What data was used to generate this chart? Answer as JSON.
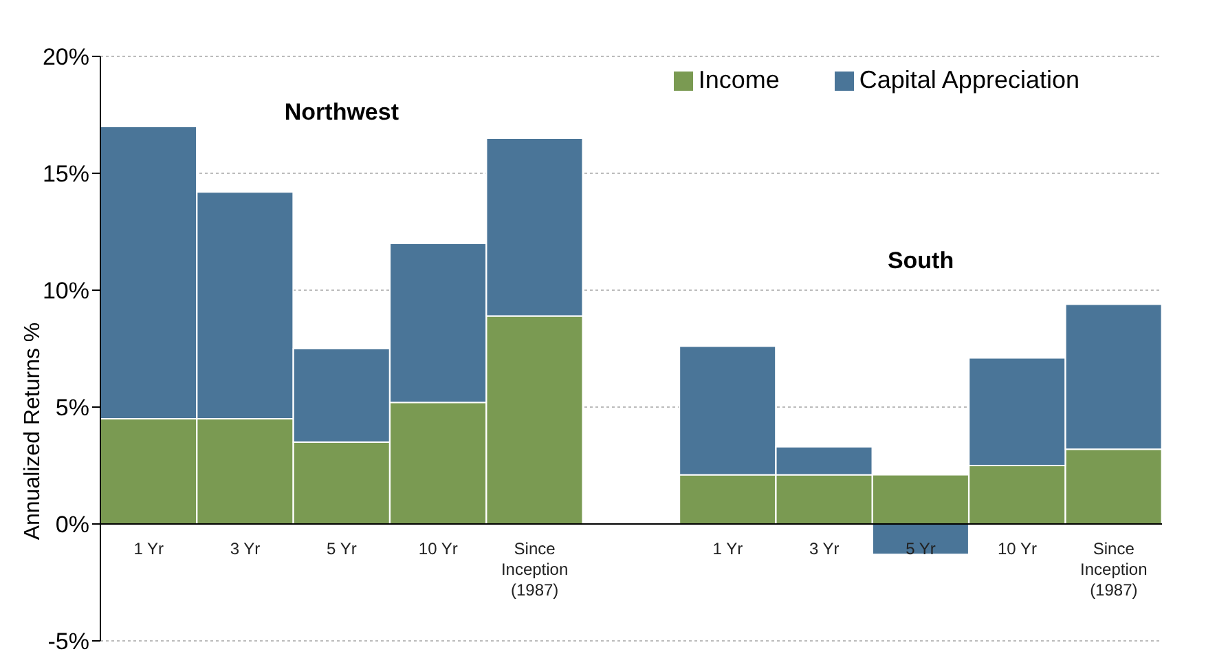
{
  "chart_data": {
    "type": "bar",
    "stacked": true,
    "ylabel": "Annualized Returns %",
    "categories": [
      "1 Yr",
      "3 Yr",
      "5 Yr",
      "10 Yr",
      "Since Inception (1987)",
      null,
      "1 Yr",
      "3 Yr",
      "5 Yr",
      "10 Yr",
      "Since Inception (1987)"
    ],
    "series": [
      {
        "name": "Income",
        "color": "#7a9a52",
        "values": [
          4.5,
          4.5,
          3.5,
          5.2,
          8.9,
          null,
          2.1,
          2.1,
          2.1,
          2.5,
          3.2
        ]
      },
      {
        "name": "Capital Appreciation",
        "color": "#4a7598",
        "values": [
          12.5,
          9.7,
          4.0,
          6.8,
          7.6,
          null,
          5.5,
          1.2,
          -1.3,
          4.6,
          6.2
        ]
      }
    ],
    "ylim": [
      -5,
      20
    ],
    "yticks": [
      {
        "value": -5,
        "label": "-5%"
      },
      {
        "value": 0,
        "label": "0%"
      },
      {
        "value": 5,
        "label": "5%"
      },
      {
        "value": 10,
        "label": "10%"
      },
      {
        "value": 15,
        "label": "15%"
      },
      {
        "value": 20,
        "label": "20%"
      }
    ],
    "grid": "y",
    "legend": "top right",
    "annotations": [
      "Northwest",
      "South"
    ]
  }
}
